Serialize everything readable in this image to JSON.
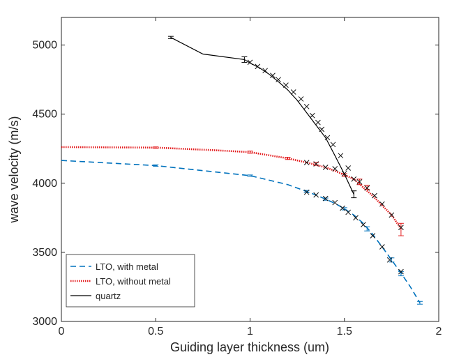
{
  "chart_data": {
    "type": "line",
    "title": "",
    "xlabel": "Guiding layer thickness (um)",
    "ylabel": "wave velocity (m/s)",
    "xlim": [
      0,
      2
    ],
    "ylim": [
      3000,
      5200
    ],
    "xticks": [
      0,
      0.5,
      1,
      1.5,
      2
    ],
    "xtick_labels": [
      "0",
      "0.5",
      "1",
      "1.5",
      "2"
    ],
    "yticks": [
      3000,
      3500,
      4000,
      4500,
      5000
    ],
    "ytick_labels": [
      "3000",
      "3500",
      "4000",
      "4500",
      "5000"
    ],
    "grid": false,
    "legend_position": "bottom-left",
    "series": [
      {
        "name": "LTO, with metal",
        "color": "#0072BD",
        "line_style": "dashed",
        "line": {
          "x": [
            0,
            0.5,
            1.0,
            1.2,
            1.3,
            1.35,
            1.4,
            1.45,
            1.5,
            1.55,
            1.6,
            1.65,
            1.7,
            1.75,
            1.8,
            1.85,
            1.9
          ],
          "y": [
            4165,
            4128,
            4055,
            3990,
            3940,
            3915,
            3885,
            3855,
            3815,
            3770,
            3710,
            3630,
            3540,
            3445,
            3350,
            3250,
            3135
          ]
        },
        "error_bars": {
          "x": [
            0.5,
            1.0,
            1.3,
            1.4,
            1.5,
            1.62,
            1.75,
            1.8,
            1.9
          ],
          "y": [
            4128,
            4055,
            3940,
            3885,
            3815,
            3670,
            3445,
            3345,
            3135
          ],
          "err": [
            5,
            5,
            8,
            8,
            8,
            15,
            15,
            15,
            10
          ]
        },
        "markers": {
          "x": [
            1.3,
            1.35,
            1.4,
            1.45,
            1.49,
            1.52,
            1.56,
            1.6,
            1.65,
            1.7,
            1.74,
            1.8
          ],
          "y": [
            3935,
            3915,
            3890,
            3860,
            3820,
            3790,
            3750,
            3700,
            3620,
            3540,
            3445,
            3360
          ]
        }
      },
      {
        "name": "LTO, without metal",
        "color": "#E31A1C",
        "line_style": "dotted",
        "line": {
          "x": [
            0,
            0.5,
            0.8,
            1.0,
            1.2,
            1.3,
            1.4,
            1.45,
            1.5,
            1.55,
            1.6,
            1.65,
            1.7,
            1.75,
            1.8
          ],
          "y": [
            4262,
            4258,
            4240,
            4225,
            4180,
            4150,
            4115,
            4090,
            4060,
            4030,
            3970,
            3910,
            3840,
            3770,
            3670
          ]
        },
        "error_bars": {
          "x": [
            0.5,
            1.0,
            1.2,
            1.35,
            1.5,
            1.58,
            1.62,
            1.8
          ],
          "y": [
            4258,
            4225,
            4180,
            4140,
            4060,
            4010,
            3970,
            3665
          ],
          "err": [
            5,
            8,
            8,
            10,
            10,
            20,
            15,
            45
          ]
        },
        "markers": {
          "x": [
            1.3,
            1.35,
            1.4,
            1.45,
            1.5,
            1.55,
            1.58,
            1.62,
            1.66,
            1.7,
            1.75,
            1.8
          ],
          "y": [
            4150,
            4140,
            4115,
            4105,
            4070,
            4030,
            4010,
            3965,
            3910,
            3850,
            3770,
            3680
          ]
        }
      },
      {
        "name": "quartz",
        "color": "#000000",
        "line_style": "solid",
        "line": {
          "x": [
            0.58,
            0.75,
            0.97,
            1.0,
            1.05,
            1.1,
            1.15,
            1.2,
            1.25,
            1.3,
            1.35,
            1.4,
            1.45,
            1.5,
            1.55
          ],
          "y": [
            5055,
            4935,
            4895,
            4870,
            4835,
            4790,
            4735,
            4675,
            4600,
            4510,
            4420,
            4330,
            4200,
            4065,
            3920
          ]
        },
        "error_bars": {
          "x": [
            0.58,
            0.97,
            1.55
          ],
          "y": [
            5055,
            4895,
            3920
          ],
          "err": [
            8,
            20,
            25
          ]
        },
        "markers": {
          "x": [
            1.0,
            1.04,
            1.08,
            1.12,
            1.15,
            1.19,
            1.23,
            1.27,
            1.3,
            1.33,
            1.36,
            1.38,
            1.41,
            1.44,
            1.48,
            1.52
          ],
          "y": [
            4875,
            4845,
            4815,
            4780,
            4750,
            4710,
            4660,
            4610,
            4555,
            4490,
            4440,
            4390,
            4330,
            4280,
            4200,
            4110
          ]
        }
      }
    ]
  }
}
